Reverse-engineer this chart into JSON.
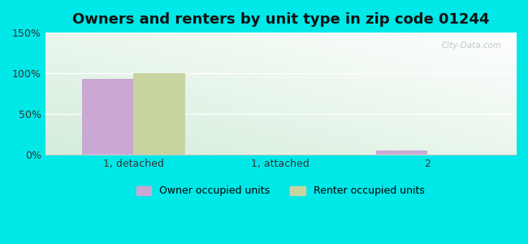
{
  "title": "Owners and renters by unit type in zip code 01244",
  "categories": [
    "1, detached",
    "1, attached",
    "2"
  ],
  "owner_values": [
    93,
    0,
    5
  ],
  "renter_values": [
    100,
    0,
    0
  ],
  "owner_color": "#c9a8d4",
  "renter_color": "#c8d4a0",
  "ylim": [
    0,
    150
  ],
  "yticks": [
    0,
    50,
    100,
    150
  ],
  "ytick_labels": [
    "0%",
    "50%",
    "100%",
    "150%"
  ],
  "bar_width": 0.35,
  "background_outer": "#00e8e8",
  "background_inner_top": "#ffffff",
  "background_inner_bottom": "#d4edda",
  "legend_labels": [
    "Owner occupied units",
    "Renter occupied units"
  ],
  "watermark": "City-Data.com",
  "title_fontsize": 13
}
